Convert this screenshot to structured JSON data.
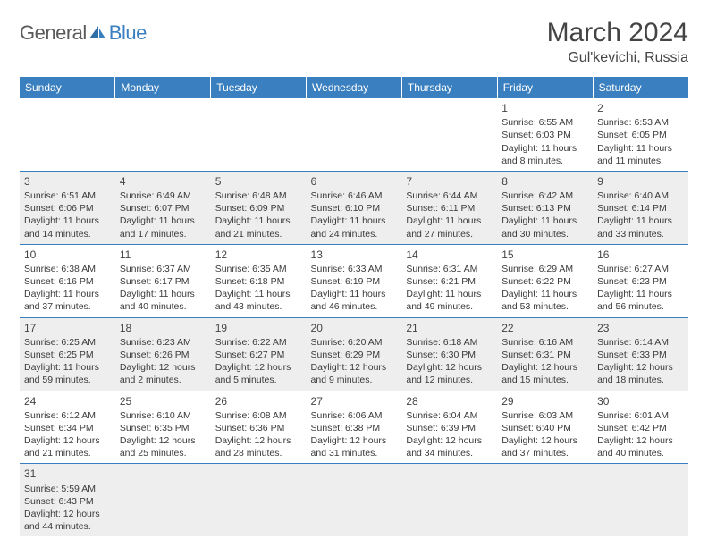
{
  "logo": {
    "text1": "General",
    "text2": "Blue"
  },
  "header": {
    "title": "March 2024",
    "location": "Gul'kevichi, Russia"
  },
  "colors": {
    "header_bg": "#3a7fbf",
    "header_fg": "#ffffff",
    "row_alt_bg": "#eeeeee",
    "border": "#3a7fbf",
    "text": "#3a3a3a",
    "logo_gray": "#5a5a5a",
    "logo_blue": "#3a7fbf"
  },
  "weekdays": [
    "Sunday",
    "Monday",
    "Tuesday",
    "Wednesday",
    "Thursday",
    "Friday",
    "Saturday"
  ],
  "weeks": [
    [
      null,
      null,
      null,
      null,
      null,
      {
        "n": "1",
        "sr": "Sunrise: 6:55 AM",
        "ss": "Sunset: 6:03 PM",
        "dl": "Daylight: 11 hours and 8 minutes."
      },
      {
        "n": "2",
        "sr": "Sunrise: 6:53 AM",
        "ss": "Sunset: 6:05 PM",
        "dl": "Daylight: 11 hours and 11 minutes."
      }
    ],
    [
      {
        "n": "3",
        "sr": "Sunrise: 6:51 AM",
        "ss": "Sunset: 6:06 PM",
        "dl": "Daylight: 11 hours and 14 minutes."
      },
      {
        "n": "4",
        "sr": "Sunrise: 6:49 AM",
        "ss": "Sunset: 6:07 PM",
        "dl": "Daylight: 11 hours and 17 minutes."
      },
      {
        "n": "5",
        "sr": "Sunrise: 6:48 AM",
        "ss": "Sunset: 6:09 PM",
        "dl": "Daylight: 11 hours and 21 minutes."
      },
      {
        "n": "6",
        "sr": "Sunrise: 6:46 AM",
        "ss": "Sunset: 6:10 PM",
        "dl": "Daylight: 11 hours and 24 minutes."
      },
      {
        "n": "7",
        "sr": "Sunrise: 6:44 AM",
        "ss": "Sunset: 6:11 PM",
        "dl": "Daylight: 11 hours and 27 minutes."
      },
      {
        "n": "8",
        "sr": "Sunrise: 6:42 AM",
        "ss": "Sunset: 6:13 PM",
        "dl": "Daylight: 11 hours and 30 minutes."
      },
      {
        "n": "9",
        "sr": "Sunrise: 6:40 AM",
        "ss": "Sunset: 6:14 PM",
        "dl": "Daylight: 11 hours and 33 minutes."
      }
    ],
    [
      {
        "n": "10",
        "sr": "Sunrise: 6:38 AM",
        "ss": "Sunset: 6:16 PM",
        "dl": "Daylight: 11 hours and 37 minutes."
      },
      {
        "n": "11",
        "sr": "Sunrise: 6:37 AM",
        "ss": "Sunset: 6:17 PM",
        "dl": "Daylight: 11 hours and 40 minutes."
      },
      {
        "n": "12",
        "sr": "Sunrise: 6:35 AM",
        "ss": "Sunset: 6:18 PM",
        "dl": "Daylight: 11 hours and 43 minutes."
      },
      {
        "n": "13",
        "sr": "Sunrise: 6:33 AM",
        "ss": "Sunset: 6:19 PM",
        "dl": "Daylight: 11 hours and 46 minutes."
      },
      {
        "n": "14",
        "sr": "Sunrise: 6:31 AM",
        "ss": "Sunset: 6:21 PM",
        "dl": "Daylight: 11 hours and 49 minutes."
      },
      {
        "n": "15",
        "sr": "Sunrise: 6:29 AM",
        "ss": "Sunset: 6:22 PM",
        "dl": "Daylight: 11 hours and 53 minutes."
      },
      {
        "n": "16",
        "sr": "Sunrise: 6:27 AM",
        "ss": "Sunset: 6:23 PM",
        "dl": "Daylight: 11 hours and 56 minutes."
      }
    ],
    [
      {
        "n": "17",
        "sr": "Sunrise: 6:25 AM",
        "ss": "Sunset: 6:25 PM",
        "dl": "Daylight: 11 hours and 59 minutes."
      },
      {
        "n": "18",
        "sr": "Sunrise: 6:23 AM",
        "ss": "Sunset: 6:26 PM",
        "dl": "Daylight: 12 hours and 2 minutes."
      },
      {
        "n": "19",
        "sr": "Sunrise: 6:22 AM",
        "ss": "Sunset: 6:27 PM",
        "dl": "Daylight: 12 hours and 5 minutes."
      },
      {
        "n": "20",
        "sr": "Sunrise: 6:20 AM",
        "ss": "Sunset: 6:29 PM",
        "dl": "Daylight: 12 hours and 9 minutes."
      },
      {
        "n": "21",
        "sr": "Sunrise: 6:18 AM",
        "ss": "Sunset: 6:30 PM",
        "dl": "Daylight: 12 hours and 12 minutes."
      },
      {
        "n": "22",
        "sr": "Sunrise: 6:16 AM",
        "ss": "Sunset: 6:31 PM",
        "dl": "Daylight: 12 hours and 15 minutes."
      },
      {
        "n": "23",
        "sr": "Sunrise: 6:14 AM",
        "ss": "Sunset: 6:33 PM",
        "dl": "Daylight: 12 hours and 18 minutes."
      }
    ],
    [
      {
        "n": "24",
        "sr": "Sunrise: 6:12 AM",
        "ss": "Sunset: 6:34 PM",
        "dl": "Daylight: 12 hours and 21 minutes."
      },
      {
        "n": "25",
        "sr": "Sunrise: 6:10 AM",
        "ss": "Sunset: 6:35 PM",
        "dl": "Daylight: 12 hours and 25 minutes."
      },
      {
        "n": "26",
        "sr": "Sunrise: 6:08 AM",
        "ss": "Sunset: 6:36 PM",
        "dl": "Daylight: 12 hours and 28 minutes."
      },
      {
        "n": "27",
        "sr": "Sunrise: 6:06 AM",
        "ss": "Sunset: 6:38 PM",
        "dl": "Daylight: 12 hours and 31 minutes."
      },
      {
        "n": "28",
        "sr": "Sunrise: 6:04 AM",
        "ss": "Sunset: 6:39 PM",
        "dl": "Daylight: 12 hours and 34 minutes."
      },
      {
        "n": "29",
        "sr": "Sunrise: 6:03 AM",
        "ss": "Sunset: 6:40 PM",
        "dl": "Daylight: 12 hours and 37 minutes."
      },
      {
        "n": "30",
        "sr": "Sunrise: 6:01 AM",
        "ss": "Sunset: 6:42 PM",
        "dl": "Daylight: 12 hours and 40 minutes."
      }
    ],
    [
      {
        "n": "31",
        "sr": "Sunrise: 5:59 AM",
        "ss": "Sunset: 6:43 PM",
        "dl": "Daylight: 12 hours and 44 minutes."
      },
      null,
      null,
      null,
      null,
      null,
      null
    ]
  ]
}
